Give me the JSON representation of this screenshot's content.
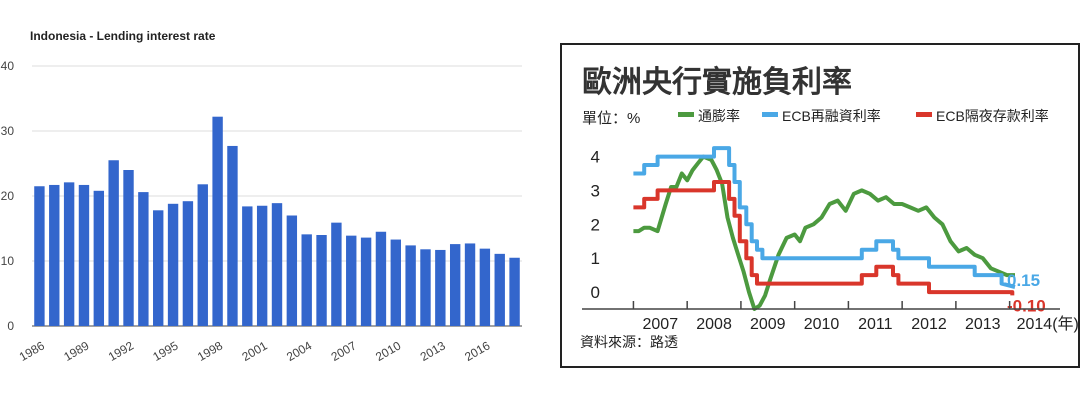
{
  "chart_data": [
    {
      "type": "bar",
      "title": "Indonesia - Lending interest rate",
      "xlabel": "",
      "ylabel": "",
      "ylim": [
        0,
        40
      ],
      "yticks": [
        0,
        10,
        20,
        30,
        40
      ],
      "categories": [
        "1986",
        "1987",
        "1988",
        "1989",
        "1990",
        "1991",
        "1992",
        "1993",
        "1994",
        "1995",
        "1996",
        "1997",
        "1998",
        "1999",
        "2000",
        "2001",
        "2002",
        "2003",
        "2004",
        "2005",
        "2006",
        "2007",
        "2008",
        "2009",
        "2010",
        "2011",
        "2012",
        "2013",
        "2014",
        "2015",
        "2016",
        "2017",
        "2018"
      ],
      "xtick_labels": [
        "1986",
        "1989",
        "1992",
        "1995",
        "1998",
        "2001",
        "2004",
        "2007",
        "2010",
        "2013",
        "2016"
      ],
      "values": [
        21.5,
        21.7,
        22.1,
        21.7,
        20.8,
        25.5,
        24.0,
        20.6,
        17.8,
        18.8,
        19.2,
        21.8,
        32.2,
        27.7,
        18.4,
        18.5,
        18.9,
        17.0,
        14.1,
        14.0,
        15.9,
        13.9,
        13.6,
        14.5,
        13.3,
        12.4,
        11.8,
        11.7,
        12.6,
        12.7,
        11.9,
        11.1,
        10.5
      ],
      "color": "#3366cc",
      "grid": true,
      "legend": "none"
    },
    {
      "type": "line",
      "title": "歐洲央行實施負利率",
      "unit_label": "單位：%",
      "source": "資料來源：路透",
      "ylim": [
        -0.5,
        4.4
      ],
      "yticks": [
        0,
        1,
        2,
        3,
        4
      ],
      "xlim": [
        2006.75,
        2014.1
      ],
      "xtick_labels": [
        "2007",
        "2008",
        "2009",
        "2010",
        "2011",
        "2012",
        "2013",
        "2014(年)"
      ],
      "legend": "top",
      "end_labels": [
        {
          "text": "0.15",
          "color": "#4aa8e6"
        },
        {
          "text": "-0.10",
          "color": "#d9362b"
        }
      ],
      "series": [
        {
          "name": "通膨率",
          "color": "#4c9a3f",
          "x": [
            2007.0,
            2007.1,
            2007.2,
            2007.3,
            2007.45,
            2007.6,
            2007.7,
            2007.8,
            2007.9,
            2008.0,
            2008.1,
            2008.2,
            2008.3,
            2008.45,
            2008.55,
            2008.65,
            2008.75,
            2008.85,
            2008.95,
            2009.05,
            2009.15,
            2009.25,
            2009.35,
            2009.45,
            2009.55,
            2009.7,
            2009.85,
            2010.0,
            2010.1,
            2010.2,
            2010.35,
            2010.5,
            2010.65,
            2010.8,
            2010.95,
            2011.1,
            2011.25,
            2011.4,
            2011.55,
            2011.7,
            2011.85,
            2012.0,
            2012.15,
            2012.3,
            2012.45,
            2012.6,
            2012.75,
            2012.9,
            2013.05,
            2013.2,
            2013.35,
            2013.5,
            2013.65,
            2013.8,
            2013.95,
            2014.1
          ],
          "y": [
            1.8,
            1.8,
            1.9,
            1.9,
            1.8,
            2.6,
            3.1,
            3.1,
            3.5,
            3.3,
            3.6,
            3.8,
            4.0,
            3.9,
            3.6,
            3.2,
            2.2,
            1.6,
            1.1,
            0.6,
            0.0,
            -0.5,
            -0.4,
            -0.1,
            0.4,
            1.1,
            1.6,
            1.7,
            1.5,
            1.9,
            2.0,
            2.2,
            2.6,
            2.7,
            2.4,
            2.9,
            3.0,
            2.9,
            2.7,
            2.8,
            2.6,
            2.6,
            2.5,
            2.4,
            2.5,
            2.2,
            2.0,
            1.5,
            1.2,
            1.3,
            1.1,
            1.0,
            0.7,
            0.6,
            0.5,
            0.5
          ]
        },
        {
          "name": "ECB再融資利率",
          "color": "#4aa8e6",
          "x": [
            2007.0,
            2007.2,
            2007.2,
            2007.45,
            2007.45,
            2008.5,
            2008.5,
            2008.78,
            2008.78,
            2008.88,
            2008.88,
            2008.98,
            2008.98,
            2009.1,
            2009.1,
            2009.2,
            2009.2,
            2009.3,
            2009.3,
            2009.4,
            2009.4,
            2011.25,
            2011.25,
            2011.52,
            2011.52,
            2011.83,
            2011.83,
            2011.93,
            2011.93,
            2012.5,
            2012.5,
            2013.35,
            2013.35,
            2013.85,
            2013.85,
            2014.1
          ],
          "y": [
            3.5,
            3.5,
            3.75,
            3.75,
            4.0,
            4.0,
            4.25,
            4.25,
            3.75,
            3.75,
            3.25,
            3.25,
            2.5,
            2.5,
            2.0,
            2.0,
            1.5,
            1.5,
            1.25,
            1.25,
            1.0,
            1.0,
            1.25,
            1.25,
            1.5,
            1.5,
            1.25,
            1.25,
            1.0,
            1.0,
            0.75,
            0.75,
            0.5,
            0.5,
            0.25,
            0.15
          ]
        },
        {
          "name": "ECB隔夜存款利率",
          "color": "#d9362b",
          "x": [
            2007.0,
            2007.2,
            2007.2,
            2007.45,
            2007.45,
            2008.5,
            2008.5,
            2008.78,
            2008.78,
            2008.88,
            2008.88,
            2008.98,
            2008.98,
            2009.1,
            2009.1,
            2009.2,
            2009.2,
            2009.3,
            2009.3,
            2011.25,
            2011.25,
            2011.52,
            2011.52,
            2011.83,
            2011.83,
            2011.93,
            2011.93,
            2012.5,
            2012.5,
            2014.05,
            2014.05
          ],
          "y": [
            2.5,
            2.5,
            2.75,
            2.75,
            3.0,
            3.0,
            3.25,
            3.25,
            2.75,
            2.75,
            2.25,
            2.25,
            1.5,
            1.5,
            1.0,
            1.0,
            0.5,
            0.5,
            0.25,
            0.25,
            0.5,
            0.5,
            0.75,
            0.75,
            0.5,
            0.5,
            0.25,
            0.25,
            0.0,
            0.0,
            -0.1
          ]
        }
      ]
    }
  ]
}
